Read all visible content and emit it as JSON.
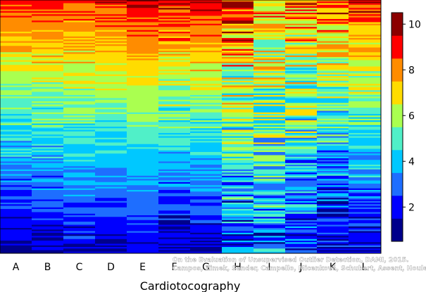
{
  "chart_data": {
    "type": "heatmap",
    "title": "",
    "xlabel": "Cardiotocography",
    "ylabel": "",
    "categories": [
      "A",
      "B",
      "C",
      "D",
      "E",
      "F",
      "G",
      "H",
      "I",
      "J",
      "K",
      "L"
    ],
    "colorbar": {
      "range": [
        0.5,
        10.5
      ],
      "ticks": [
        2,
        4,
        6,
        8,
        10
      ],
      "bands": [
        {
          "value": 1,
          "color": "#00008b"
        },
        {
          "value": 2,
          "color": "#0000ff"
        },
        {
          "value": 3,
          "color": "#1e6eff"
        },
        {
          "value": 4,
          "color": "#00c8ff"
        },
        {
          "value": 5,
          "color": "#50f0c8"
        },
        {
          "value": 6,
          "color": "#aaff50"
        },
        {
          "value": 7,
          "color": "#ffdc00"
        },
        {
          "value": 8,
          "color": "#ff8c00"
        },
        {
          "value": 9,
          "color": "#ff0000"
        },
        {
          "value": 10,
          "color": "#8b0000"
        }
      ]
    },
    "column_profiles": [
      {
        "label": "A",
        "top": 9.2,
        "bottom": 1.0,
        "noise": 0.9,
        "seed": 11
      },
      {
        "label": "B",
        "top": 9.3,
        "bottom": 1.1,
        "noise": 0.9,
        "seed": 23
      },
      {
        "label": "C",
        "top": 9.0,
        "bottom": 1.6,
        "noise": 0.8,
        "seed": 37
      },
      {
        "label": "D",
        "top": 9.1,
        "bottom": 1.4,
        "noise": 0.6,
        "seed": 41
      },
      {
        "label": "E",
        "top": 9.8,
        "bottom": 1.6,
        "noise": 0.5,
        "seed": 53
      },
      {
        "label": "F",
        "top": 9.6,
        "bottom": 1.0,
        "noise": 1.1,
        "seed": 67
      },
      {
        "label": "G",
        "top": 9.4,
        "bottom": 1.3,
        "noise": 0.9,
        "seed": 71
      },
      {
        "label": "H",
        "top": 9.0,
        "bottom": 2.4,
        "noise": 2.2,
        "seed": 83
      },
      {
        "label": "I",
        "top": 8.0,
        "bottom": 2.8,
        "noise": 2.0,
        "seed": 97
      },
      {
        "label": "J",
        "top": 8.2,
        "bottom": 2.2,
        "noise": 2.0,
        "seed": 101
      },
      {
        "label": "K",
        "top": 8.6,
        "bottom": 1.2,
        "noise": 1.6,
        "seed": 113
      },
      {
        "label": "L",
        "top": 9.0,
        "bottom": 1.5,
        "noise": 1.1,
        "seed": 127
      }
    ],
    "rows": 160,
    "grid": false,
    "legend": "colorbar-right"
  },
  "watermark": {
    "line1": "On the Evaluation of Unsupervised Outlier Detection, DAMI, 2015.",
    "line2": "Campos, Zimek, Sander, Campello, Micenková, Schubert, Assent, Houle"
  }
}
